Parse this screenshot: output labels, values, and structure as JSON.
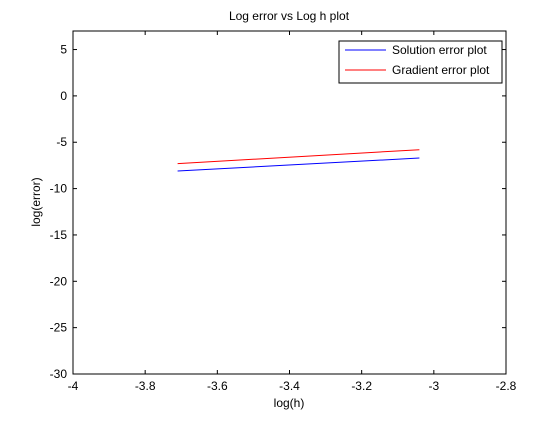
{
  "chart_data": {
    "type": "line",
    "title": "Log error vs Log h plot",
    "xlabel": "log(h)",
    "ylabel": "log(error)",
    "xlim": [
      -4,
      -2.8
    ],
    "ylim": [
      -30,
      7
    ],
    "xticks": [
      -4,
      -3.8,
      -3.6,
      -3.4,
      -3.2,
      -3,
      -2.8
    ],
    "xtick_labels": [
      "-4",
      "-3.8",
      "-3.6",
      "-3.4",
      "-3.2",
      "-3",
      "-2.8"
    ],
    "yticks": [
      -30,
      -25,
      -20,
      -15,
      -10,
      -5,
      0,
      5
    ],
    "ytick_labels": [
      "-30",
      "-25",
      "-20",
      "-15",
      "-10",
      "-5",
      "0",
      "5"
    ],
    "grid": false,
    "legend_position": "top-right",
    "series": [
      {
        "name": "Solution error plot",
        "color": "#0000ff",
        "x": [
          -3.71,
          -3.04
        ],
        "y": [
          -8.1,
          -6.7
        ]
      },
      {
        "name": "Gradient error plot",
        "color": "#ff0000",
        "x": [
          -3.71,
          -3.04
        ],
        "y": [
          -7.3,
          -5.8
        ]
      }
    ]
  }
}
